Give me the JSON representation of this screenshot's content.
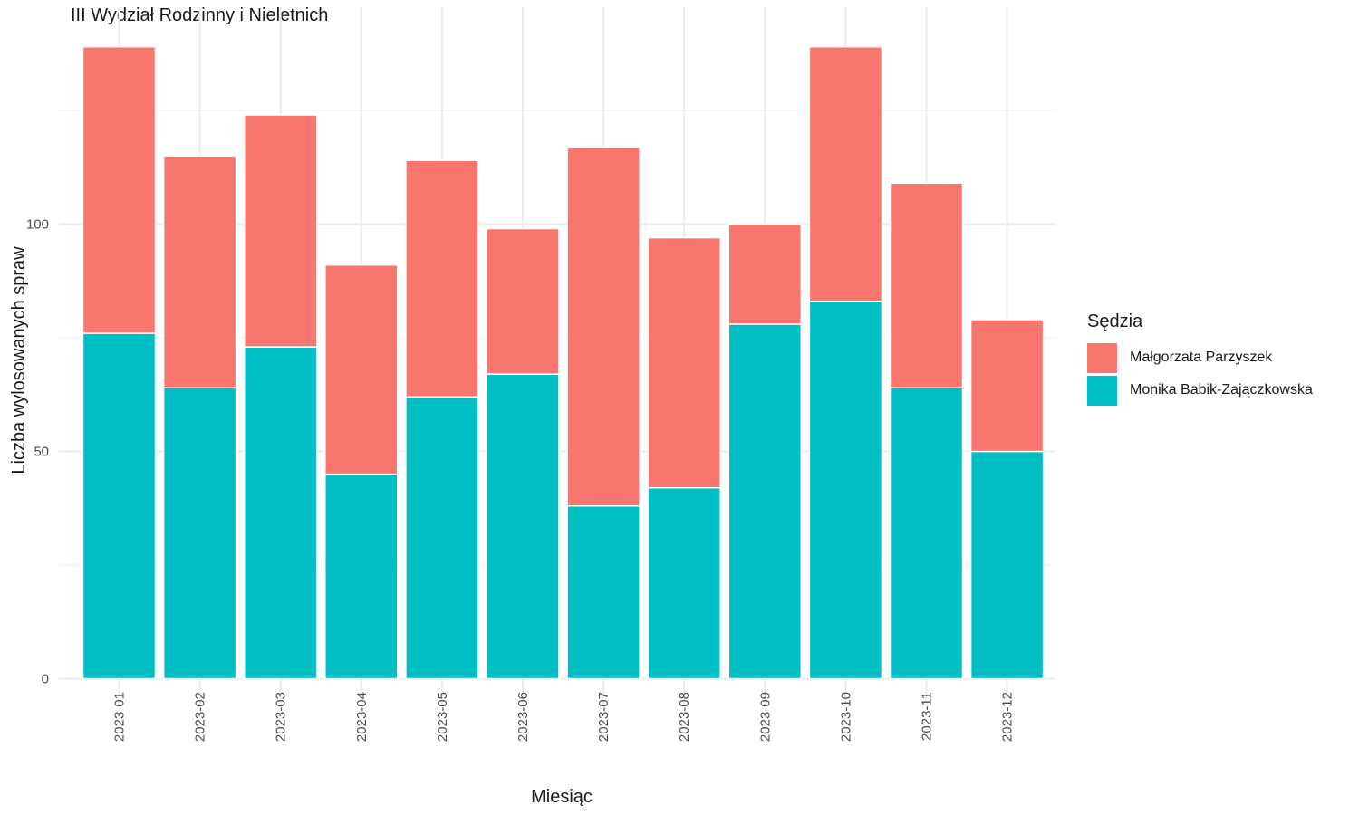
{
  "chart_data": {
    "type": "bar",
    "stacked": true,
    "title": "III Wydział Rodzinny i Nieletnich",
    "xlabel": "Miesiąc",
    "ylabel": "Liczba wylosowanych spraw",
    "categories": [
      "2023-01",
      "2023-02",
      "2023-03",
      "2023-04",
      "2023-05",
      "2023-06",
      "2023-07",
      "2023-08",
      "2023-09",
      "2023-10",
      "2023-11",
      "2023-12"
    ],
    "series": [
      {
        "name": "Monika Babik-Zajączkowska",
        "color": "#00BFC4",
        "values": [
          76,
          64,
          73,
          45,
          62,
          67,
          38,
          42,
          78,
          83,
          64,
          50
        ]
      },
      {
        "name": "Małgorzata Parzyszek",
        "color": "#F8766D",
        "values": [
          63,
          51,
          51,
          46,
          52,
          32,
          79,
          55,
          22,
          56,
          45,
          29
        ]
      }
    ],
    "ylim": [
      0,
      140
    ],
    "yticks": [
      0,
      50,
      100
    ],
    "grid": true,
    "legend": {
      "title": "Sędzia",
      "position": "right",
      "order": [
        "Małgorzata Parzyszek",
        "Monika Babik-Zajączkowska"
      ]
    }
  }
}
